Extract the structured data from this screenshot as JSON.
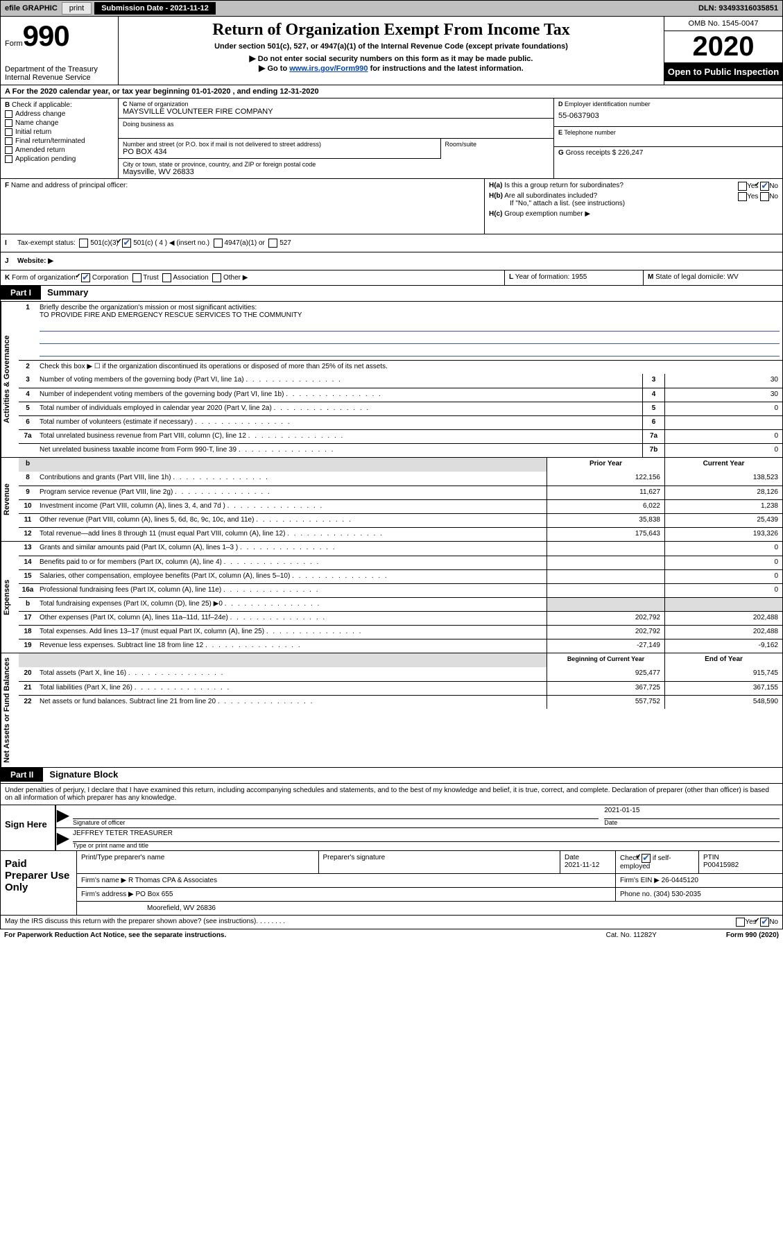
{
  "topbar": {
    "efile": "efile GRAPHIC",
    "print": "print",
    "submission": "Submission Date - 2021-11-12",
    "dln": "DLN: 93493316035851"
  },
  "header": {
    "form_prefix": "Form",
    "form_no": "990",
    "department": "Department of the Treasury",
    "irs": "Internal Revenue Service",
    "title": "Return of Organization Exempt From Income Tax",
    "subtitle": "Under section 501(c), 527, or 4947(a)(1) of the Internal Revenue Code (except private foundations)",
    "instr1": "Do not enter social security numbers on this form as it may be made public.",
    "instr2_pre": "Go to ",
    "instr2_link": "www.irs.gov/Form990",
    "instr2_post": " for instructions and the latest information.",
    "omb": "OMB No. 1545-0047",
    "year": "2020",
    "open_public": "Open to Public Inspection"
  },
  "period": "For the 2020 calendar year, or tax year beginning 01-01-2020    , and ending 12-31-2020",
  "sectionB": {
    "label": "Check if applicable:",
    "items": [
      "Address change",
      "Name change",
      "Initial return",
      "Final return/terminated",
      "Amended return",
      "Application pending"
    ]
  },
  "sectionC": {
    "name_lbl": "Name of organization",
    "name": "MAYSVILLE VOLUNTEER FIRE COMPANY",
    "dba_lbl": "Doing business as",
    "street_lbl": "Number and street (or P.O. box if mail is not delivered to street address)",
    "street": "PO BOX 434",
    "room_lbl": "Room/suite",
    "city_lbl": "City or town, state or province, country, and ZIP or foreign postal code",
    "city": "Maysville, WV  26833"
  },
  "sectionD": {
    "lbl": "Employer identification number",
    "val": "55-0637903"
  },
  "sectionE": {
    "lbl": "Telephone number"
  },
  "sectionG": {
    "lbl": "Gross receipts $",
    "val": "226,247"
  },
  "sectionF": {
    "lbl": "Name and address of principal officer:"
  },
  "sectionH": {
    "a_lbl": "Is this a group return for subordinates?",
    "b_lbl": "Are all subordinates included?",
    "b_note": "If \"No,\" attach a list. (see instructions)",
    "c_lbl": "Group exemption number ▶"
  },
  "rowI": {
    "label": "Tax-exempt status:",
    "opts": [
      "501(c)(3)",
      "501(c) ( 4 ) ◀ (insert no.)",
      "4947(a)(1) or",
      "527"
    ]
  },
  "rowJ": {
    "label": "Website: ▶"
  },
  "rowK": {
    "label": "Form of organization:",
    "opts": [
      "Corporation",
      "Trust",
      "Association",
      "Other ▶"
    ]
  },
  "rowL": {
    "lbl": "Year of formation:",
    "val": "1955"
  },
  "rowM": {
    "lbl": "State of legal domicile:",
    "val": "WV"
  },
  "partI": {
    "hdr": "Part I",
    "title": "Summary",
    "line1_lbl": "Briefly describe the organization's mission or most significant activities:",
    "mission": "TO PROVIDE FIRE AND EMERGENCY RESCUE SERVICES TO THE COMMUNITY",
    "line2": "Check this box ▶ ☐  if the organization discontinued its operations or disposed of more than 25% of its net assets.",
    "sideA": "Activities & Governance",
    "sideRev": "Revenue",
    "sideExp": "Expenses",
    "sideNet": "Net Assets or Fund Balances",
    "governance": [
      {
        "no": "3",
        "text": "Number of voting members of the governing body (Part VI, line 1a)",
        "num": "3",
        "val": "30"
      },
      {
        "no": "4",
        "text": "Number of independent voting members of the governing body (Part VI, line 1b)",
        "num": "4",
        "val": "30"
      },
      {
        "no": "5",
        "text": "Total number of individuals employed in calendar year 2020 (Part V, line 2a)",
        "num": "5",
        "val": "0"
      },
      {
        "no": "6",
        "text": "Total number of volunteers (estimate if necessary)",
        "num": "6",
        "val": ""
      },
      {
        "no": "7a",
        "text": "Total unrelated business revenue from Part VIII, column (C), line 12",
        "num": "7a",
        "val": "0"
      },
      {
        "no": "",
        "text": "Net unrelated business taxable income from Form 990-T, line 39",
        "num": "7b",
        "val": "0"
      }
    ],
    "col_prior": "Prior Year",
    "col_current": "Current Year",
    "revenue": [
      {
        "no": "8",
        "text": "Contributions and grants (Part VIII, line 1h)",
        "prior": "122,156",
        "curr": "138,523"
      },
      {
        "no": "9",
        "text": "Program service revenue (Part VIII, line 2g)",
        "prior": "11,627",
        "curr": "28,126"
      },
      {
        "no": "10",
        "text": "Investment income (Part VIII, column (A), lines 3, 4, and 7d )",
        "prior": "6,022",
        "curr": "1,238"
      },
      {
        "no": "11",
        "text": "Other revenue (Part VIII, column (A), lines 5, 6d, 8c, 9c, 10c, and 11e)",
        "prior": "35,838",
        "curr": "25,439"
      },
      {
        "no": "12",
        "text": "Total revenue—add lines 8 through 11 (must equal Part VIII, column (A), line 12)",
        "prior": "175,643",
        "curr": "193,326"
      }
    ],
    "expenses": [
      {
        "no": "13",
        "text": "Grants and similar amounts paid (Part IX, column (A), lines 1–3 )",
        "prior": "",
        "curr": "0"
      },
      {
        "no": "14",
        "text": "Benefits paid to or for members (Part IX, column (A), line 4)",
        "prior": "",
        "curr": "0"
      },
      {
        "no": "15",
        "text": "Salaries, other compensation, employee benefits (Part IX, column (A), lines 5–10)",
        "prior": "",
        "curr": "0"
      },
      {
        "no": "16a",
        "text": "Professional fundraising fees (Part IX, column (A), line 11e)",
        "prior": "",
        "curr": "0"
      },
      {
        "no": "b",
        "text": "Total fundraising expenses (Part IX, column (D), line 25) ▶0",
        "prior": "SHADE",
        "curr": "SHADE"
      },
      {
        "no": "17",
        "text": "Other expenses (Part IX, column (A), lines 11a–11d, 11f–24e)",
        "prior": "202,792",
        "curr": "202,488"
      },
      {
        "no": "18",
        "text": "Total expenses. Add lines 13–17 (must equal Part IX, column (A), line 25)",
        "prior": "202,792",
        "curr": "202,488"
      },
      {
        "no": "19",
        "text": "Revenue less expenses. Subtract line 18 from line 12",
        "prior": "-27,149",
        "curr": "-9,162"
      }
    ],
    "col_begin": "Beginning of Current Year",
    "col_end": "End of Year",
    "netassets": [
      {
        "no": "20",
        "text": "Total assets (Part X, line 16)",
        "prior": "925,477",
        "curr": "915,745"
      },
      {
        "no": "21",
        "text": "Total liabilities (Part X, line 26)",
        "prior": "367,725",
        "curr": "367,155"
      },
      {
        "no": "22",
        "text": "Net assets or fund balances. Subtract line 21 from line 20",
        "prior": "557,752",
        "curr": "548,590"
      }
    ]
  },
  "partII": {
    "hdr": "Part II",
    "title": "Signature Block",
    "perjury": "Under penalties of perjury, I declare that I have examined this return, including accompanying schedules and statements, and to the best of my knowledge and belief, it is true, correct, and complete. Declaration of preparer (other than officer) is based on all information of which preparer has any knowledge.",
    "sign_here": "Sign Here",
    "sig_officer": "Signature of officer",
    "date_lbl": "Date",
    "date_val": "2021-01-15",
    "officer_name": "JEFFREY TETER  TREASURER",
    "type_name": "Type or print name and title",
    "paid_label": "Paid Preparer Use Only",
    "prep_name_lbl": "Print/Type preparer's name",
    "prep_sig_lbl": "Preparer's signature",
    "prep_date_lbl": "Date",
    "prep_date": "2021-11-12",
    "check_self": "Check ☑ if self-employed",
    "ptin_lbl": "PTIN",
    "ptin": "P00415982",
    "firm_name_lbl": "Firm's name     ▶",
    "firm_name": "R Thomas CPA & Associates",
    "firm_ein_lbl": "Firm's EIN ▶",
    "firm_ein": "26-0445120",
    "firm_addr_lbl": "Firm's address ▶",
    "firm_addr1": "PO Box 655",
    "firm_addr2": "Moorefield, WV  26836",
    "phone_lbl": "Phone no.",
    "phone": "(304) 530-2035",
    "discuss": "May the IRS discuss this return with the preparer shown above? (see instructions)"
  },
  "footer": {
    "paperwork": "For Paperwork Reduction Act Notice, see the separate instructions.",
    "cat": "Cat. No. 11282Y",
    "form": "Form 990 (2020)"
  }
}
